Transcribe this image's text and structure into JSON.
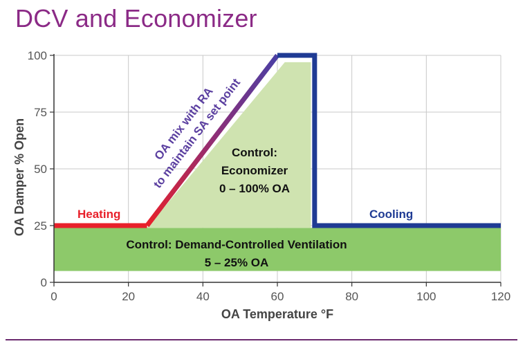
{
  "title": "DCV and Economizer",
  "colors": {
    "title": "#8b2a86",
    "dcv_band": "#8dc96a",
    "economizer_area": "#cfe3b0",
    "heating_line": "#e8202a",
    "mix_line_top": "#5b3fa0",
    "cooling_line": "#1f3b94",
    "grid": "#c8c8c8"
  },
  "chart_data": {
    "type": "area",
    "xlabel": "OA Temperature °F",
    "ylabel": "OA Damper % Open",
    "xlim": [
      0,
      120
    ],
    "ylim": [
      0,
      100
    ],
    "xticks": [
      "0",
      "20",
      "40",
      "60",
      "80",
      "100",
      "120"
    ],
    "yticks": [
      "0",
      "25",
      "50",
      "75",
      "100"
    ],
    "grid": true,
    "series": [
      {
        "name": "Heating",
        "x": [
          0,
          25
        ],
        "y": [
          25,
          25
        ]
      },
      {
        "name": "OA mix with RA to maintain SA set point",
        "x": [
          25,
          60
        ],
        "y": [
          25,
          100
        ]
      },
      {
        "name": "",
        "x": [
          60,
          70
        ],
        "y": [
          100,
          100
        ]
      },
      {
        "name": "Cooling",
        "x": [
          70,
          70,
          120
        ],
        "y": [
          100,
          25,
          25
        ]
      }
    ],
    "regions": [
      {
        "label_lines": [
          "Control: Demand-Controlled Ventilation",
          "5 – 25% OA"
        ],
        "x": [
          0,
          120
        ],
        "y": [
          5,
          24
        ]
      },
      {
        "label_lines": [
          "Control:",
          "Economizer",
          "0 – 100% OA"
        ],
        "x": [
          25,
          62,
          69,
          69
        ],
        "y": [
          24,
          97,
          97,
          24
        ]
      }
    ],
    "annotations": {
      "heating": "Heating",
      "cooling": "Cooling",
      "mix_line1": "OA mix with RA",
      "mix_line2": "to maintain SA set point"
    }
  }
}
